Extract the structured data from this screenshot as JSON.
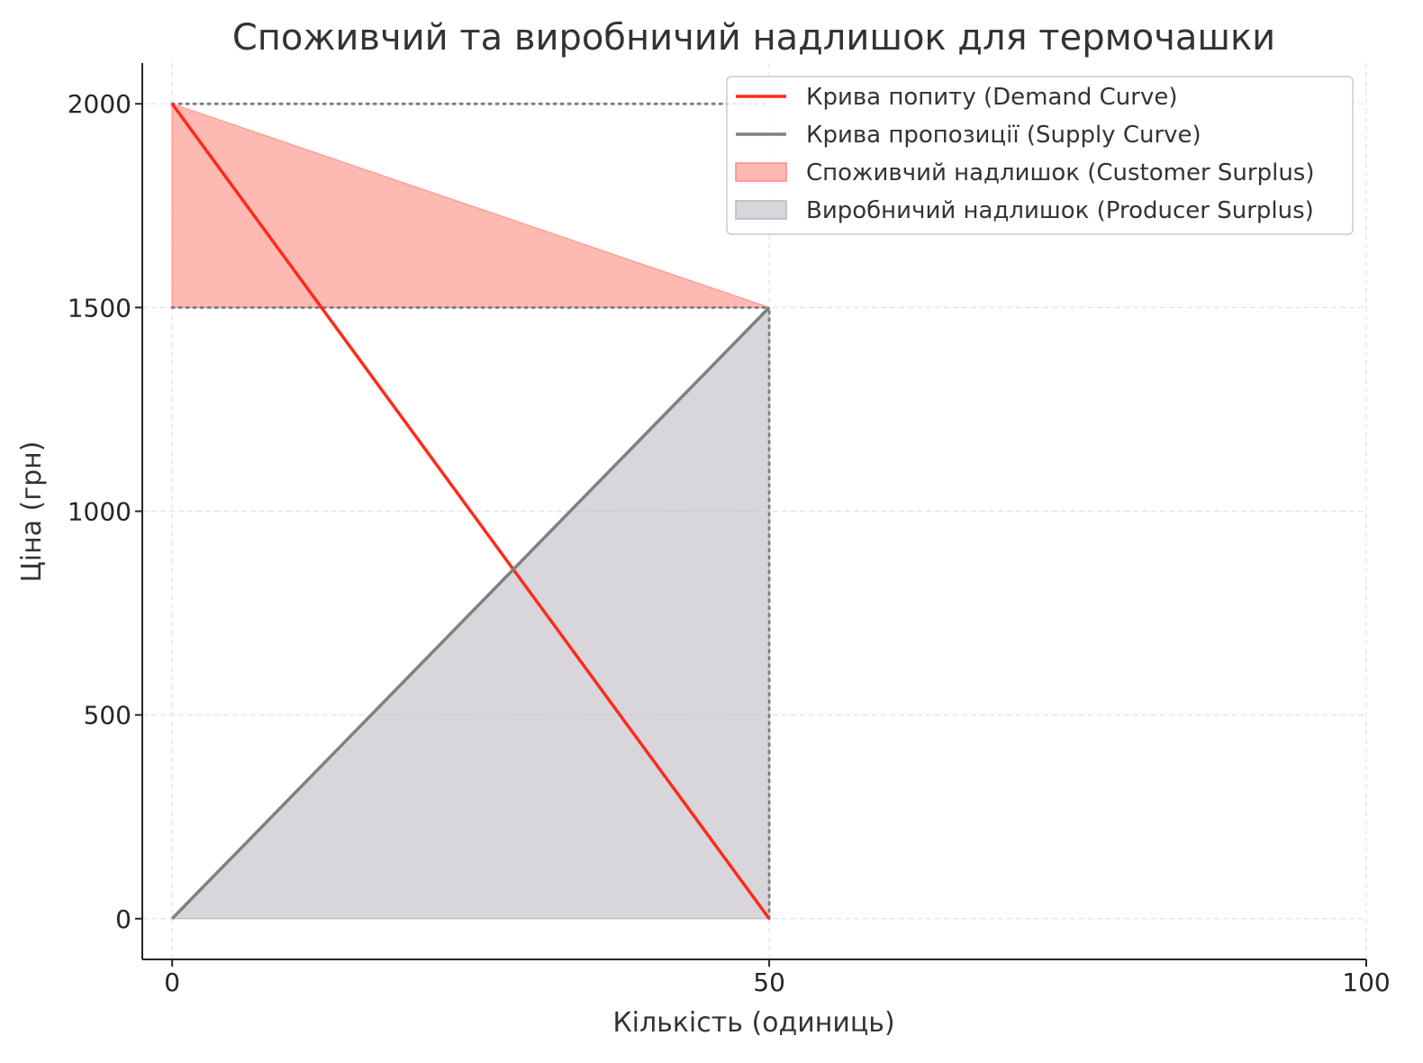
{
  "chart_data": {
    "type": "line",
    "title": "Споживчий та виробничий надлишок для термочашки",
    "xlabel": "Кількість (одиниць)",
    "ylabel": "Ціна (грн)",
    "xlim": [
      -2.5,
      100
    ],
    "ylim": [
      -100,
      2100
    ],
    "xticks": [
      0,
      50,
      100
    ],
    "yticks": [
      0,
      500,
      1000,
      1500,
      2000
    ],
    "grid": true,
    "legend_position": "top-right",
    "series": [
      {
        "name": "Крива попиту (Demand Curve)",
        "kind": "line",
        "color": "#ff2a1a",
        "x": [
          0,
          50
        ],
        "y": [
          2000,
          0
        ]
      },
      {
        "name": "Крива пропозиції (Supply Curve)",
        "kind": "line",
        "color": "#808080",
        "x": [
          0,
          50
        ],
        "y": [
          0,
          1500
        ]
      }
    ],
    "areas": [
      {
        "name": "Споживчий надлишок (Customer Surplus)",
        "color": "#ff8a80",
        "opacity": 0.6,
        "points": [
          [
            0,
            2000
          ],
          [
            50,
            1500
          ],
          [
            0,
            1500
          ]
        ]
      },
      {
        "name": "Виробничий надлишок (Producer Surplus)",
        "color": "#b8b3bd",
        "opacity": 0.55,
        "points": [
          [
            0,
            0
          ],
          [
            50,
            1500
          ],
          [
            50,
            0
          ]
        ]
      }
    ],
    "reference_lines": [
      {
        "kind": "horizontal",
        "y": 2000,
        "x_from": 0,
        "x_to": 50,
        "color": "#808080",
        "style": "dotted"
      },
      {
        "kind": "horizontal",
        "y": 1500,
        "x_from": 0,
        "x_to": 50,
        "color": "#808080",
        "style": "dotted"
      },
      {
        "kind": "vertical",
        "x": 50,
        "y_from": 0,
        "y_to": 1500,
        "color": "#808080",
        "style": "dotted"
      }
    ]
  }
}
